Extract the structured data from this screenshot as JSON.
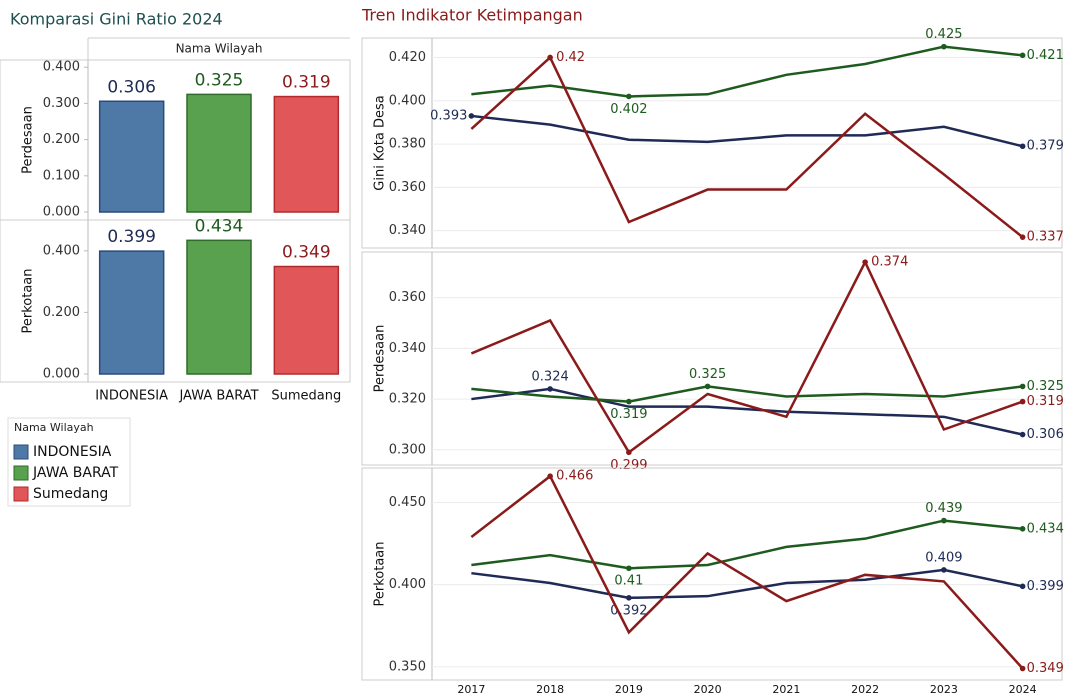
{
  "chart_data": [
    {
      "type": "bar",
      "title": "Komparasi Gini Ratio 2024",
      "column_header": "Nama Wilayah",
      "categories": [
        "INDONESIA",
        "JAWA BARAT",
        "Sumedang"
      ],
      "colors": [
        "#4e79a7",
        "#59a14f",
        "#e15759"
      ],
      "border_colors": [
        "#2b4a7a",
        "#2f6b2a",
        "#b02a2c"
      ],
      "label_colors": [
        "#1f2a55",
        "#1e5b1e",
        "#8b1a1a"
      ],
      "panels": [
        {
          "ylabel": "Perdesaan",
          "values": [
            0.306,
            0.325,
            0.319
          ],
          "ylim": [
            0,
            0.42
          ],
          "yticks": [
            {
              "value": 0,
              "label": "0.000"
            },
            {
              "value": 0.1,
              "label": "0.100"
            },
            {
              "value": 0.2,
              "label": "0.200"
            },
            {
              "value": 0.3,
              "label": "0.300"
            },
            {
              "value": 0.4,
              "label": "0.400"
            }
          ]
        },
        {
          "ylabel": "Perkotaan",
          "values": [
            0.399,
            0.434,
            0.349
          ],
          "ylim": [
            0,
            0.5
          ],
          "yticks": [
            {
              "value": 0,
              "label": "0.000"
            },
            {
              "value": 0.2,
              "label": "0.200"
            },
            {
              "value": 0.4,
              "label": "0.400"
            }
          ]
        }
      ],
      "legend": {
        "title": "Nama Wilayah",
        "position": "bottom-left"
      }
    },
    {
      "type": "line",
      "title": "Tren Indikator Ketimpangan",
      "categories": [
        "2017",
        "2018",
        "2019",
        "2020",
        "2021",
        "2022",
        "2023",
        "2024"
      ],
      "grid": true,
      "panels": [
        {
          "ylabel": "Gini Kota Desa",
          "ylim": [
            0.332,
            0.429
          ],
          "yticks": [
            {
              "value": 0.34,
              "label": "0.340"
            },
            {
              "value": 0.36,
              "label": "0.360"
            },
            {
              "value": 0.38,
              "label": "0.380"
            },
            {
              "value": 0.4,
              "label": "0.400"
            },
            {
              "value": 0.42,
              "label": "0.420"
            }
          ],
          "series": [
            {
              "name": "INDONESIA",
              "color": "#1f2a55",
              "values": [
                0.393,
                0.389,
                0.382,
                0.381,
                0.384,
                0.384,
                0.388,
                0.379
              ],
              "labeled": [
                0,
                7
              ]
            },
            {
              "name": "JAWA BARAT",
              "color": "#1e5b1e",
              "values": [
                0.403,
                0.407,
                0.402,
                0.403,
                0.412,
                0.417,
                0.425,
                0.421
              ],
              "labeled": [
                2,
                6,
                7
              ]
            },
            {
              "name": "Sumedang",
              "color": "#8b1a1a",
              "values": [
                0.387,
                0.42,
                0.344,
                0.359,
                0.359,
                0.394,
                0.366,
                0.337
              ],
              "labeled": [
                1,
                7
              ]
            }
          ]
        },
        {
          "ylabel": "Perdesaan",
          "ylim": [
            0.294,
            0.378
          ],
          "yticks": [
            {
              "value": 0.3,
              "label": "0.300"
            },
            {
              "value": 0.32,
              "label": "0.320"
            },
            {
              "value": 0.34,
              "label": "0.340"
            },
            {
              "value": 0.36,
              "label": "0.360"
            }
          ],
          "series": [
            {
              "name": "INDONESIA",
              "color": "#1f2a55",
              "values": [
                0.32,
                0.324,
                0.317,
                0.317,
                0.315,
                0.314,
                0.313,
                0.306
              ],
              "labeled": [
                1,
                7
              ]
            },
            {
              "name": "JAWA BARAT",
              "color": "#1e5b1e",
              "values": [
                0.324,
                0.321,
                0.319,
                0.325,
                0.321,
                0.322,
                0.321,
                0.325
              ],
              "labeled": [
                2,
                3,
                7
              ]
            },
            {
              "name": "Sumedang",
              "color": "#8b1a1a",
              "values": [
                0.338,
                0.351,
                0.299,
                0.322,
                0.313,
                0.374,
                0.308,
                0.319
              ],
              "labeled": [
                2,
                5,
                7
              ]
            }
          ]
        },
        {
          "ylabel": "Perkotaan",
          "ylim": [
            0.342,
            0.471
          ],
          "yticks": [
            {
              "value": 0.35,
              "label": "0.350"
            },
            {
              "value": 0.4,
              "label": "0.400"
            },
            {
              "value": 0.45,
              "label": "0.450"
            }
          ],
          "series": [
            {
              "name": "INDONESIA",
              "color": "#1f2a55",
              "values": [
                0.407,
                0.401,
                0.392,
                0.393,
                0.401,
                0.403,
                0.409,
                0.399
              ],
              "labeled": [
                2,
                6,
                7
              ]
            },
            {
              "name": "JAWA BARAT",
              "color": "#1e5b1e",
              "values": [
                0.412,
                0.418,
                0.41,
                0.412,
                0.423,
                0.428,
                0.439,
                0.434
              ],
              "labeled": [
                2,
                6,
                7
              ]
            },
            {
              "name": "Sumedang",
              "color": "#8b1a1a",
              "values": [
                0.429,
                0.466,
                0.371,
                0.419,
                0.39,
                0.406,
                0.402,
                0.349
              ],
              "labeled": [
                1,
                7
              ]
            }
          ]
        }
      ]
    }
  ]
}
